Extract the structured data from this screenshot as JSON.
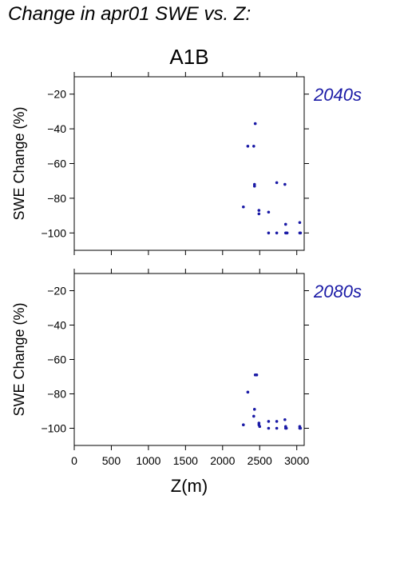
{
  "figure_title": "Change in apr01 SWE vs. Z:",
  "colors": {
    "points": "#1a1aa6",
    "panel_label": "#1a1aa6",
    "axes": "#000000"
  },
  "chart_data": [
    {
      "type": "scatter",
      "title": "A1B",
      "panel_label": "2040s",
      "xlabel": "",
      "ylabel": "SWE Change (%)",
      "xlim": [
        0,
        3100
      ],
      "ylim": [
        -110,
        -10
      ],
      "yticks": [
        -20,
        -40,
        -60,
        -80,
        -100
      ],
      "xticks": [
        0,
        500,
        1000,
        1500,
        2000,
        2500,
        3000
      ],
      "show_xtick_labels": false,
      "grid": false,
      "points": [
        {
          "x": 2280,
          "y": -85
        },
        {
          "x": 2340,
          "y": -50
        },
        {
          "x": 2420,
          "y": -50
        },
        {
          "x": 2440,
          "y": -37
        },
        {
          "x": 2430,
          "y": -72
        },
        {
          "x": 2430,
          "y": -73
        },
        {
          "x": 2490,
          "y": -87
        },
        {
          "x": 2490,
          "y": -89
        },
        {
          "x": 2620,
          "y": -88
        },
        {
          "x": 2620,
          "y": -100
        },
        {
          "x": 2730,
          "y": -71
        },
        {
          "x": 2730,
          "y": -100
        },
        {
          "x": 2840,
          "y": -72
        },
        {
          "x": 2850,
          "y": -95
        },
        {
          "x": 2850,
          "y": -100
        },
        {
          "x": 2860,
          "y": -100
        },
        {
          "x": 2870,
          "y": -100
        },
        {
          "x": 3040,
          "y": -94
        },
        {
          "x": 3040,
          "y": -100
        },
        {
          "x": 3050,
          "y": -100
        }
      ]
    },
    {
      "type": "scatter",
      "title": "",
      "panel_label": "2080s",
      "xlabel": "Z(m)",
      "ylabel": "SWE Change (%)",
      "xlim": [
        0,
        3100
      ],
      "ylim": [
        -110,
        -10
      ],
      "yticks": [
        -20,
        -40,
        -60,
        -80,
        -100
      ],
      "xticks": [
        0,
        500,
        1000,
        1500,
        2000,
        2500,
        3000
      ],
      "show_xtick_labels": true,
      "grid": false,
      "points": [
        {
          "x": 2280,
          "y": -98
        },
        {
          "x": 2340,
          "y": -79
        },
        {
          "x": 2420,
          "y": -93
        },
        {
          "x": 2430,
          "y": -89
        },
        {
          "x": 2440,
          "y": -69
        },
        {
          "x": 2460,
          "y": -69
        },
        {
          "x": 2490,
          "y": -97
        },
        {
          "x": 2490,
          "y": -98
        },
        {
          "x": 2500,
          "y": -99
        },
        {
          "x": 2620,
          "y": -96
        },
        {
          "x": 2620,
          "y": -100
        },
        {
          "x": 2730,
          "y": -96
        },
        {
          "x": 2730,
          "y": -100
        },
        {
          "x": 2840,
          "y": -95
        },
        {
          "x": 2850,
          "y": -99
        },
        {
          "x": 2850,
          "y": -100
        },
        {
          "x": 2860,
          "y": -100
        },
        {
          "x": 3040,
          "y": -99
        },
        {
          "x": 3040,
          "y": -100
        },
        {
          "x": 3050,
          "y": -100
        }
      ]
    }
  ]
}
